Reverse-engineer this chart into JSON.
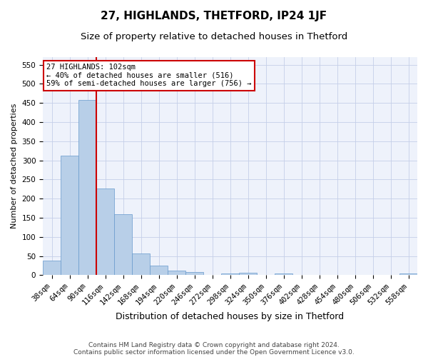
{
  "title": "27, HIGHLANDS, THETFORD, IP24 1JF",
  "subtitle": "Size of property relative to detached houses in Thetford",
  "xlabel": "Distribution of detached houses by size in Thetford",
  "ylabel": "Number of detached properties",
  "categories": [
    "38sqm",
    "64sqm",
    "90sqm",
    "116sqm",
    "142sqm",
    "168sqm",
    "194sqm",
    "220sqm",
    "246sqm",
    "272sqm",
    "298sqm",
    "324sqm",
    "350sqm",
    "376sqm",
    "402sqm",
    "428sqm",
    "454sqm",
    "480sqm",
    "506sqm",
    "532sqm",
    "558sqm"
  ],
  "values": [
    38,
    313,
    458,
    227,
    160,
    57,
    25,
    11,
    9,
    0,
    5,
    7,
    0,
    5,
    0,
    0,
    0,
    0,
    0,
    0,
    5
  ],
  "bar_color": "#b8cfe8",
  "bar_edgecolor": "#6699cc",
  "vline_color": "#cc0000",
  "vline_index": 2.5,
  "annotation_text": "27 HIGHLANDS: 102sqm\n← 40% of detached houses are smaller (516)\n59% of semi-detached houses are larger (756) →",
  "annotation_box_edgecolor": "#cc0000",
  "ylim": [
    0,
    570
  ],
  "yticks": [
    0,
    50,
    100,
    150,
    200,
    250,
    300,
    350,
    400,
    450,
    500,
    550
  ],
  "footer_line1": "Contains HM Land Registry data © Crown copyright and database right 2024.",
  "footer_line2": "Contains public sector information licensed under the Open Government Licence v3.0.",
  "bg_color": "#eef2fb",
  "grid_color": "#c5cfe8",
  "title_fontsize": 11,
  "subtitle_fontsize": 9.5,
  "xlabel_fontsize": 9,
  "ylabel_fontsize": 8,
  "tick_fontsize": 7.5,
  "footer_fontsize": 6.5,
  "annot_fontsize": 7.5
}
